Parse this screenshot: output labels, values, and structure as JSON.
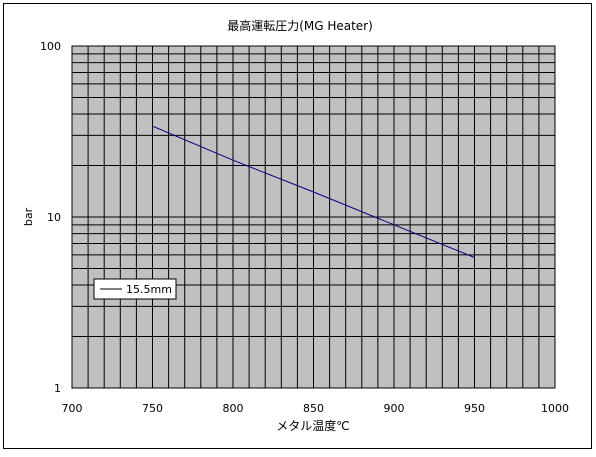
{
  "chart_data": {
    "type": "line",
    "title": "最高運転圧力(MG Heater)",
    "xlabel": "メタル温度℃",
    "ylabel": "bar",
    "xlim": [
      700,
      1000
    ],
    "ylim": [
      1,
      100
    ],
    "y_scale": "log",
    "grid": true,
    "x_ticks": [
      700,
      750,
      800,
      850,
      900,
      950,
      1000
    ],
    "y_ticks": [
      1,
      10,
      100
    ],
    "x_ticklabels": [
      "700",
      "750",
      "800",
      "850",
      "900",
      "950",
      "1000"
    ],
    "y_ticklabels": [
      "1",
      "10",
      "100"
    ],
    "legend_position": "left",
    "series": [
      {
        "name": "15.5mm",
        "color": "#000080",
        "x": [
          750,
          800,
          850,
          900,
          950
        ],
        "y": [
          34,
          21.5,
          14,
          9,
          5.8
        ]
      }
    ],
    "colors": {
      "plot_background": "#c0c0c0",
      "grid": "#000000",
      "frame": "#000000"
    }
  }
}
